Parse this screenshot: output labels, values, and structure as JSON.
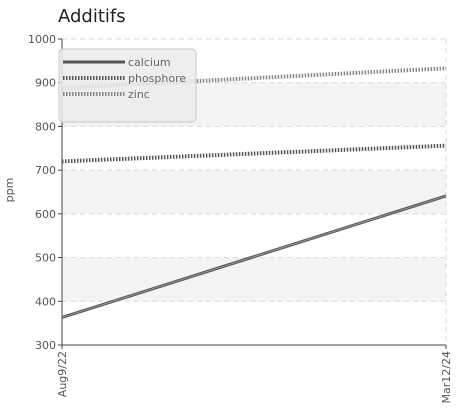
{
  "chart_data": {
    "type": "line",
    "title": "Additifs",
    "xlabel": "",
    "ylabel": "ppm",
    "x": [
      "Aug9/22",
      "Mar12/24"
    ],
    "ylim": [
      300,
      1000
    ],
    "yticks": [
      300,
      400,
      500,
      600,
      700,
      800,
      900,
      1000
    ],
    "grid": true,
    "legend_position": "top-left",
    "series": [
      {
        "name": "calcium",
        "values": [
          363,
          641
        ],
        "color": "#555555",
        "style": "solid"
      },
      {
        "name": "phosphore",
        "values": [
          720,
          756
        ],
        "color": "#555555",
        "style": "dotted"
      },
      {
        "name": "zinc",
        "values": [
          888,
          933
        ],
        "color": "#888888",
        "style": "dotted"
      }
    ]
  }
}
